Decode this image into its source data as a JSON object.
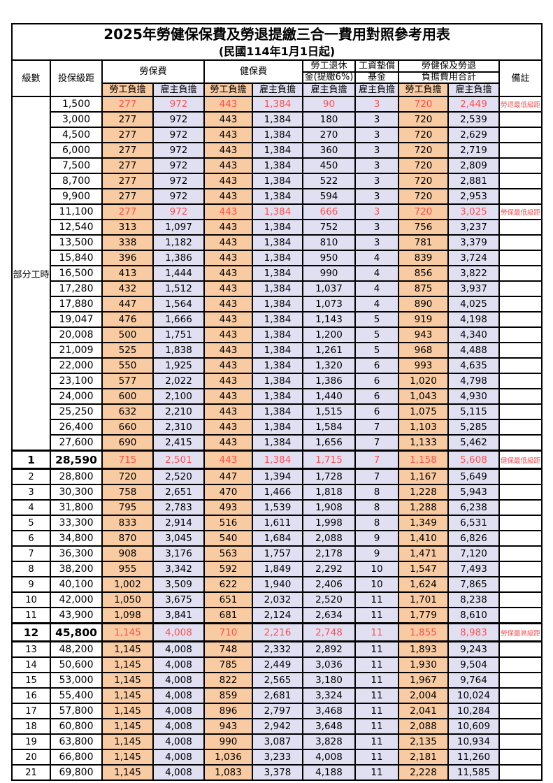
{
  "title": "2025年勞健保保費及勞退提繳三合一費用對照參考用表",
  "subtitle": "(民國114年1月1日起)",
  "colors": {
    "employee_bg": "#F8CBA2",
    "employer_bg": "#E1E0F2",
    "highlight_text": "#FF5050",
    "border": "#000000"
  },
  "header": {
    "level": "級數",
    "bracket": "投保級距",
    "labor_insurance": "勞保費",
    "health_insurance": "健保費",
    "pension_line1": "勞工退休",
    "pension_line2": "金(提繳6%)",
    "wage_fund_line1": "工資墊償",
    "wage_fund_line2": "基金",
    "total_line1": "勞健保及勞退",
    "total_line2": "負擔費用合計",
    "employee": "勞工負擔",
    "employer": "雇主負擔",
    "notes": "備註"
  },
  "part_time": {
    "label": "部分工時",
    "row_span": 23
  },
  "value_column_types": [
    "emp",
    "er",
    "emp",
    "er",
    "er",
    "er",
    "emp",
    "er"
  ],
  "rows": [
    {
      "level": null,
      "bracket": "1,500",
      "values": [
        "277",
        "972",
        "443",
        "1,384",
        "90",
        "3",
        "720",
        "2,449"
      ],
      "note": "勞退最低級距",
      "red": true,
      "emphasis": false
    },
    {
      "level": null,
      "bracket": "3,000",
      "values": [
        "277",
        "972",
        "443",
        "1,384",
        "180",
        "3",
        "720",
        "2,539"
      ],
      "note": "",
      "red": false,
      "emphasis": false
    },
    {
      "level": null,
      "bracket": "4,500",
      "values": [
        "277",
        "972",
        "443",
        "1,384",
        "270",
        "3",
        "720",
        "2,629"
      ],
      "note": "",
      "red": false,
      "emphasis": false
    },
    {
      "level": null,
      "bracket": "6,000",
      "values": [
        "277",
        "972",
        "443",
        "1,384",
        "360",
        "3",
        "720",
        "2,719"
      ],
      "note": "",
      "red": false,
      "emphasis": false
    },
    {
      "level": null,
      "bracket": "7,500",
      "values": [
        "277",
        "972",
        "443",
        "1,384",
        "450",
        "3",
        "720",
        "2,809"
      ],
      "note": "",
      "red": false,
      "emphasis": false
    },
    {
      "level": null,
      "bracket": "8,700",
      "values": [
        "277",
        "972",
        "443",
        "1,384",
        "522",
        "3",
        "720",
        "2,881"
      ],
      "note": "",
      "red": false,
      "emphasis": false
    },
    {
      "level": null,
      "bracket": "9,900",
      "values": [
        "277",
        "972",
        "443",
        "1,384",
        "594",
        "3",
        "720",
        "2,953"
      ],
      "note": "",
      "red": false,
      "emphasis": false
    },
    {
      "level": null,
      "bracket": "11,100",
      "values": [
        "277",
        "972",
        "443",
        "1,384",
        "666",
        "3",
        "720",
        "3,025"
      ],
      "note": "勞保最低級距",
      "red": true,
      "emphasis": false
    },
    {
      "level": null,
      "bracket": "12,540",
      "values": [
        "313",
        "1,097",
        "443",
        "1,384",
        "752",
        "3",
        "756",
        "3,237"
      ],
      "note": "",
      "red": false,
      "emphasis": false
    },
    {
      "level": null,
      "bracket": "13,500",
      "values": [
        "338",
        "1,182",
        "443",
        "1,384",
        "810",
        "3",
        "781",
        "3,379"
      ],
      "note": "",
      "red": false,
      "emphasis": false
    },
    {
      "level": null,
      "bracket": "15,840",
      "values": [
        "396",
        "1,386",
        "443",
        "1,384",
        "950",
        "4",
        "839",
        "3,724"
      ],
      "note": "",
      "red": false,
      "emphasis": false
    },
    {
      "level": null,
      "bracket": "16,500",
      "values": [
        "413",
        "1,444",
        "443",
        "1,384",
        "990",
        "4",
        "856",
        "3,822"
      ],
      "note": "",
      "red": false,
      "emphasis": false
    },
    {
      "level": null,
      "bracket": "17,280",
      "values": [
        "432",
        "1,512",
        "443",
        "1,384",
        "1,037",
        "4",
        "875",
        "3,937"
      ],
      "note": "",
      "red": false,
      "emphasis": false
    },
    {
      "level": null,
      "bracket": "17,880",
      "values": [
        "447",
        "1,564",
        "443",
        "1,384",
        "1,073",
        "4",
        "890",
        "4,025"
      ],
      "note": "",
      "red": false,
      "emphasis": false
    },
    {
      "level": null,
      "bracket": "19,047",
      "values": [
        "476",
        "1,666",
        "443",
        "1,384",
        "1,143",
        "5",
        "919",
        "4,198"
      ],
      "note": "",
      "red": false,
      "emphasis": false
    },
    {
      "level": null,
      "bracket": "20,008",
      "values": [
        "500",
        "1,751",
        "443",
        "1,384",
        "1,200",
        "5",
        "943",
        "4,340"
      ],
      "note": "",
      "red": false,
      "emphasis": false
    },
    {
      "level": null,
      "bracket": "21,009",
      "values": [
        "525",
        "1,838",
        "443",
        "1,384",
        "1,261",
        "5",
        "968",
        "4,488"
      ],
      "note": "",
      "red": false,
      "emphasis": false
    },
    {
      "level": null,
      "bracket": "22,000",
      "values": [
        "550",
        "1,925",
        "443",
        "1,384",
        "1,320",
        "6",
        "993",
        "4,635"
      ],
      "note": "",
      "red": false,
      "emphasis": false
    },
    {
      "level": null,
      "bracket": "23,100",
      "values": [
        "577",
        "2,022",
        "443",
        "1,384",
        "1,386",
        "6",
        "1,020",
        "4,798"
      ],
      "note": "",
      "red": false,
      "emphasis": false
    },
    {
      "level": null,
      "bracket": "24,000",
      "values": [
        "600",
        "2,100",
        "443",
        "1,384",
        "1,440",
        "6",
        "1,043",
        "4,930"
      ],
      "note": "",
      "red": false,
      "emphasis": false
    },
    {
      "level": null,
      "bracket": "25,250",
      "values": [
        "632",
        "2,210",
        "443",
        "1,384",
        "1,515",
        "6",
        "1,075",
        "5,115"
      ],
      "note": "",
      "red": false,
      "emphasis": false
    },
    {
      "level": null,
      "bracket": "26,400",
      "values": [
        "660",
        "2,310",
        "443",
        "1,384",
        "1,584",
        "7",
        "1,103",
        "5,285"
      ],
      "note": "",
      "red": false,
      "emphasis": false
    },
    {
      "level": null,
      "bracket": "27,600",
      "values": [
        "690",
        "2,415",
        "443",
        "1,384",
        "1,656",
        "7",
        "1,133",
        "5,462"
      ],
      "note": "",
      "red": false,
      "emphasis": false
    },
    {
      "level": "1",
      "bracket": "28,590",
      "values": [
        "715",
        "2,501",
        "443",
        "1,384",
        "1,715",
        "7",
        "1,158",
        "5,608"
      ],
      "note": "健保最低級距",
      "red": true,
      "emphasis": true
    },
    {
      "level": "2",
      "bracket": "28,800",
      "values": [
        "720",
        "2,520",
        "447",
        "1,394",
        "1,728",
        "7",
        "1,167",
        "5,649"
      ],
      "note": "",
      "red": false,
      "emphasis": false
    },
    {
      "level": "3",
      "bracket": "30,300",
      "values": [
        "758",
        "2,651",
        "470",
        "1,466",
        "1,818",
        "8",
        "1,228",
        "5,943"
      ],
      "note": "",
      "red": false,
      "emphasis": false
    },
    {
      "level": "4",
      "bracket": "31,800",
      "values": [
        "795",
        "2,783",
        "493",
        "1,539",
        "1,908",
        "8",
        "1,288",
        "6,238"
      ],
      "note": "",
      "red": false,
      "emphasis": false
    },
    {
      "level": "5",
      "bracket": "33,300",
      "values": [
        "833",
        "2,914",
        "516",
        "1,611",
        "1,998",
        "8",
        "1,349",
        "6,531"
      ],
      "note": "",
      "red": false,
      "emphasis": false
    },
    {
      "level": "6",
      "bracket": "34,800",
      "values": [
        "870",
        "3,045",
        "540",
        "1,684",
        "2,088",
        "9",
        "1,410",
        "6,826"
      ],
      "note": "",
      "red": false,
      "emphasis": false
    },
    {
      "level": "7",
      "bracket": "36,300",
      "values": [
        "908",
        "3,176",
        "563",
        "1,757",
        "2,178",
        "9",
        "1,471",
        "7,120"
      ],
      "note": "",
      "red": false,
      "emphasis": false
    },
    {
      "level": "8",
      "bracket": "38,200",
      "values": [
        "955",
        "3,342",
        "592",
        "1,849",
        "2,292",
        "10",
        "1,547",
        "7,493"
      ],
      "note": "",
      "red": false,
      "emphasis": false
    },
    {
      "level": "9",
      "bracket": "40,100",
      "values": [
        "1,002",
        "3,509",
        "622",
        "1,940",
        "2,406",
        "10",
        "1,624",
        "7,865"
      ],
      "note": "",
      "red": false,
      "emphasis": false
    },
    {
      "level": "10",
      "bracket": "42,000",
      "values": [
        "1,050",
        "3,675",
        "651",
        "2,032",
        "2,520",
        "11",
        "1,701",
        "8,238"
      ],
      "note": "",
      "red": false,
      "emphasis": false
    },
    {
      "level": "11",
      "bracket": "43,900",
      "values": [
        "1,098",
        "3,841",
        "681",
        "2,124",
        "2,634",
        "11",
        "1,779",
        "8,610"
      ],
      "note": "",
      "red": false,
      "emphasis": false
    },
    {
      "level": "12",
      "bracket": "45,800",
      "values": [
        "1,145",
        "4,008",
        "710",
        "2,216",
        "2,748",
        "11",
        "1,855",
        "8,983"
      ],
      "note": "勞保最高級距",
      "red": true,
      "emphasis": true
    },
    {
      "level": "13",
      "bracket": "48,200",
      "values": [
        "1,145",
        "4,008",
        "748",
        "2,332",
        "2,892",
        "11",
        "1,893",
        "9,243"
      ],
      "note": "",
      "red": false,
      "emphasis": false
    },
    {
      "level": "14",
      "bracket": "50,600",
      "values": [
        "1,145",
        "4,008",
        "785",
        "2,449",
        "3,036",
        "11",
        "1,930",
        "9,504"
      ],
      "note": "",
      "red": false,
      "emphasis": false
    },
    {
      "level": "15",
      "bracket": "53,000",
      "values": [
        "1,145",
        "4,008",
        "822",
        "2,565",
        "3,180",
        "11",
        "1,967",
        "9,764"
      ],
      "note": "",
      "red": false,
      "emphasis": false
    },
    {
      "level": "16",
      "bracket": "55,400",
      "values": [
        "1,145",
        "4,008",
        "859",
        "2,681",
        "3,324",
        "11",
        "2,004",
        "10,024"
      ],
      "note": "",
      "red": false,
      "emphasis": false
    },
    {
      "level": "17",
      "bracket": "57,800",
      "values": [
        "1,145",
        "4,008",
        "896",
        "2,797",
        "3,468",
        "11",
        "2,041",
        "10,284"
      ],
      "note": "",
      "red": false,
      "emphasis": false
    },
    {
      "level": "18",
      "bracket": "60,800",
      "values": [
        "1,145",
        "4,008",
        "943",
        "2,942",
        "3,648",
        "11",
        "2,088",
        "10,609"
      ],
      "note": "",
      "red": false,
      "emphasis": false
    },
    {
      "level": "19",
      "bracket": "63,800",
      "values": [
        "1,145",
        "4,008",
        "990",
        "3,087",
        "3,828",
        "11",
        "2,135",
        "10,934"
      ],
      "note": "",
      "red": false,
      "emphasis": false
    },
    {
      "level": "20",
      "bracket": "66,800",
      "values": [
        "1,145",
        "4,008",
        "1,036",
        "3,233",
        "4,008",
        "11",
        "2,181",
        "11,260"
      ],
      "note": "",
      "red": false,
      "emphasis": false
    },
    {
      "level": "21",
      "bracket": "69,800",
      "values": [
        "1,145",
        "4,008",
        "1,083",
        "3,378",
        "4,188",
        "11",
        "2,228",
        "11,585"
      ],
      "note": "",
      "red": false,
      "emphasis": false
    }
  ]
}
